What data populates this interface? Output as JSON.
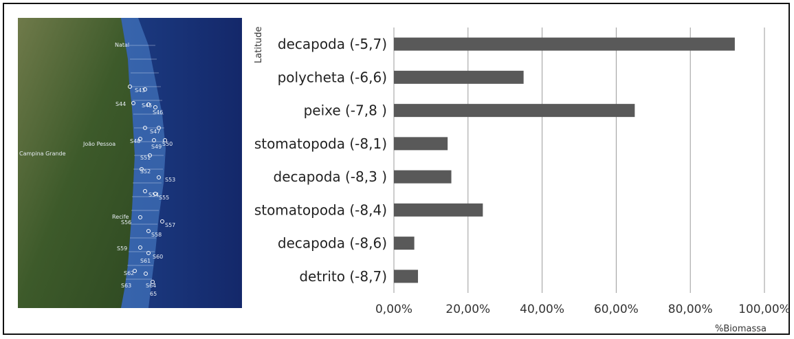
{
  "map": {
    "city_labels": [
      "Natal",
      "João Pessoa",
      "Recife",
      "Campina Grande"
    ],
    "station_labels": [
      "S43",
      "S44",
      "S45",
      "S46",
      "S47",
      "S48",
      "S49",
      "S50",
      "S51",
      "S52",
      "S53",
      "S54",
      "S55",
      "S56",
      "S57",
      "S58",
      "S59",
      "S60",
      "S61",
      "S62",
      "S63",
      "S64",
      "65"
    ]
  },
  "chart_data": {
    "type": "bar",
    "orientation": "horizontal",
    "categories": [
      "decapoda (-5,7)",
      "polycheta (-6,6)",
      "peixe  (-7,8 )",
      "stomatopoda (-8,1)",
      "decapoda (-8,3 )",
      "stomatopoda (-8,4)",
      "decapoda (-8,6)",
      "detrito (-8,7)"
    ],
    "values": [
      0.92,
      0.35,
      0.65,
      0.145,
      0.155,
      0.24,
      0.055,
      0.065
    ],
    "xlim": [
      0,
      1
    ],
    "xticks": [
      0,
      0.2,
      0.4,
      0.6,
      0.8,
      1.0
    ],
    "xtick_labels": [
      "0,00%",
      "20,00%",
      "40,00%",
      "60,00%",
      "80,00%",
      "100,00%"
    ],
    "xlabel": "%Biomassa",
    "ylabel": "Latitude",
    "bar_color": "#595959",
    "grid": "vertical"
  }
}
